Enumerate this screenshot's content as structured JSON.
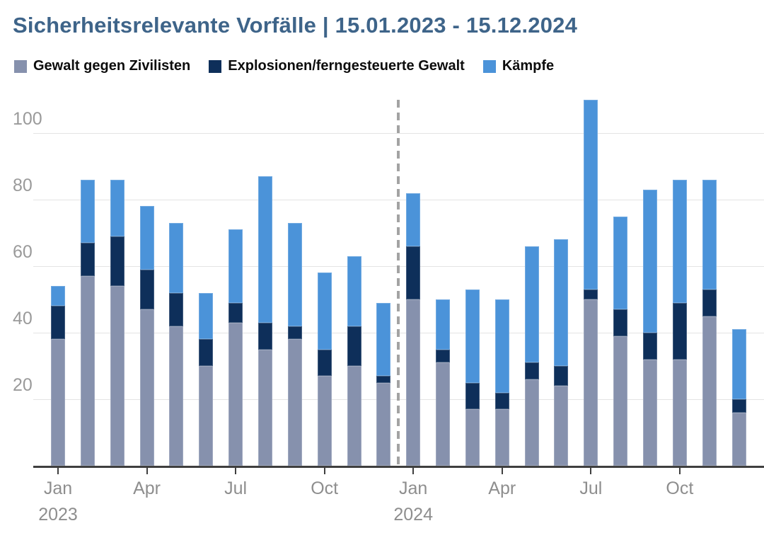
{
  "title": "Sicherheitsrelevante Vorfälle | 15.01.2023 - 15.12.2024",
  "legend": {
    "items": [
      {
        "label": "Gewalt gegen Zivilisten",
        "color": "#8691ad"
      },
      {
        "label": "Explosionen/ferngesteuerte Gewalt",
        "color": "#0e2f5a"
      },
      {
        "label": "Kämpfe",
        "color": "#4b93d9"
      }
    ]
  },
  "colors": {
    "title": "#3e6489",
    "axis_text": "#8e8e8e",
    "axis_line": "#3f3f3f",
    "gridline": "#e4e4e4",
    "divider": "#a3a3a3",
    "background": "#ffffff"
  },
  "chart_data": {
    "type": "bar",
    "stacked": true,
    "title": "Sicherheitsrelevante Vorfälle | 15.01.2023 - 15.12.2024",
    "categories": [
      "Jan 2023",
      "Feb 2023",
      "Mar 2023",
      "Apr 2023",
      "May 2023",
      "Jun 2023",
      "Jul 2023",
      "Aug 2023",
      "Sep 2023",
      "Oct 2023",
      "Nov 2023",
      "Dec 2023",
      "Jan 2024",
      "Feb 2024",
      "Mar 2024",
      "Apr 2024",
      "May 2024",
      "Jun 2024",
      "Jul 2024",
      "Aug 2024",
      "Sep 2024",
      "Oct 2024",
      "Nov 2024",
      "Dec 2024"
    ],
    "series": [
      {
        "name": "Gewalt gegen Zivilisten",
        "color": "#8691ad",
        "values": [
          38,
          57,
          54,
          47,
          42,
          30,
          43,
          35,
          38,
          27,
          30,
          25,
          50,
          31,
          17,
          17,
          26,
          24,
          50,
          39,
          32,
          32,
          45,
          16
        ]
      },
      {
        "name": "Explosionen/ferngesteuerte Gewalt",
        "color": "#0e2f5a",
        "values": [
          10,
          10,
          15,
          12,
          10,
          8,
          6,
          8,
          4,
          8,
          12,
          2,
          16,
          4,
          8,
          5,
          5,
          6,
          3,
          8,
          8,
          17,
          8,
          4
        ]
      },
      {
        "name": "Kämpfe",
        "color": "#4b93d9",
        "values": [
          6,
          19,
          17,
          19,
          21,
          14,
          22,
          44,
          31,
          23,
          21,
          22,
          16,
          15,
          28,
          28,
          35,
          38,
          57,
          28,
          43,
          37,
          33,
          21
        ]
      }
    ],
    "totals": [
      54,
      86,
      86,
      78,
      73,
      52,
      71,
      87,
      73,
      58,
      63,
      49,
      82,
      50,
      53,
      50,
      66,
      68,
      110,
      75,
      83,
      86,
      86,
      41
    ],
    "xlabel": "",
    "ylabel": "",
    "ylim": [
      0,
      110
    ],
    "yticks": [
      20,
      40,
      60,
      80,
      100
    ],
    "xticks": [
      {
        "index": 0,
        "label": "Jan",
        "sublabel": "2023"
      },
      {
        "index": 3,
        "label": "Apr"
      },
      {
        "index": 6,
        "label": "Jul"
      },
      {
        "index": 9,
        "label": "Oct"
      },
      {
        "index": 12,
        "label": "Jan",
        "sublabel": "2024"
      },
      {
        "index": 15,
        "label": "Apr"
      },
      {
        "index": 18,
        "label": "Jul"
      },
      {
        "index": 21,
        "label": "Oct"
      }
    ],
    "grid": true,
    "legend_position": "top",
    "year_divider_between": [
      11,
      12
    ]
  }
}
